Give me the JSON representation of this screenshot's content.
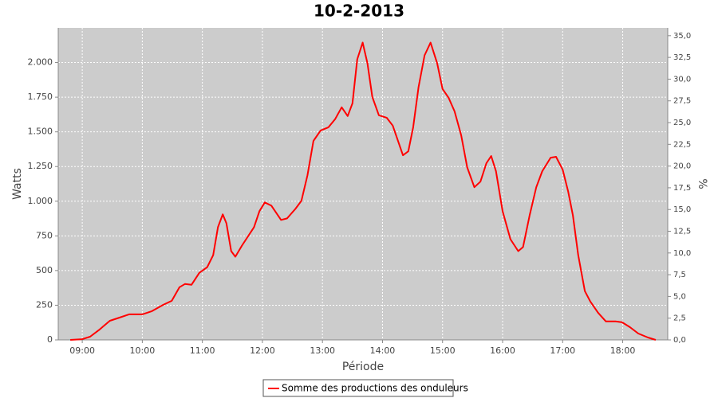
{
  "chart_data": {
    "type": "line",
    "title": "10-2-2013",
    "x_label": "Période",
    "y_label": "Watts",
    "y2_label": "%",
    "x": [
      8.8,
      9.0,
      9.13,
      9.29,
      9.46,
      9.62,
      9.78,
      10.0,
      10.16,
      10.35,
      10.49,
      10.62,
      10.71,
      10.82,
      10.95,
      11.08,
      11.18,
      11.26,
      11.34,
      11.4,
      11.48,
      11.55,
      11.66,
      11.86,
      11.95,
      12.04,
      12.15,
      12.31,
      12.41,
      12.55,
      12.65,
      12.75,
      12.85,
      12.97,
      13.1,
      13.21,
      13.32,
      13.42,
      13.5,
      13.58,
      13.67,
      13.75,
      13.83,
      13.94,
      14.07,
      14.17,
      14.34,
      14.43,
      14.51,
      14.6,
      14.7,
      14.8,
      14.91,
      15.0,
      15.1,
      15.2,
      15.31,
      15.41,
      15.53,
      15.63,
      15.73,
      15.81,
      15.89,
      16.0,
      16.13,
      16.26,
      16.34,
      16.45,
      16.56,
      16.66,
      16.8,
      16.89,
      17.0,
      17.09,
      17.17,
      17.26,
      17.37,
      17.46,
      17.59,
      17.72,
      17.88,
      17.99,
      18.12,
      18.26,
      18.42,
      18.55
    ],
    "series": [
      {
        "name": "Somme des productions des onduleurs",
        "color": "#ff0000",
        "values": [
          0,
          5,
          23,
          75,
          138,
          161,
          184,
          184,
          207,
          253,
          282,
          380,
          403,
          398,
          484,
          524,
          611,
          813,
          905,
          841,
          640,
          600,
          680,
          813,
          928,
          991,
          968,
          865,
          876,
          945,
          1003,
          1187,
          1435,
          1510,
          1533,
          1591,
          1677,
          1614,
          1706,
          2023,
          2144,
          1994,
          1752,
          1620,
          1602,
          1545,
          1331,
          1360,
          1533,
          1821,
          2052,
          2144,
          1994,
          1810,
          1746,
          1648,
          1475,
          1245,
          1101,
          1141,
          1274,
          1326,
          1216,
          928,
          726,
          640,
          669,
          899,
          1101,
          1216,
          1314,
          1320,
          1228,
          1072,
          899,
          611,
          352,
          277,
          196,
          133,
          133,
          127,
          92,
          46,
          17,
          0
        ]
      }
    ],
    "xlim": [
      8.6,
      18.75
    ],
    "xticks": [
      {
        "value": 9,
        "label": "09:00"
      },
      {
        "value": 10,
        "label": "10:00"
      },
      {
        "value": 11,
        "label": "11:00"
      },
      {
        "value": 12,
        "label": "12:00"
      },
      {
        "value": 13,
        "label": "13:00"
      },
      {
        "value": 14,
        "label": "14:00"
      },
      {
        "value": 15,
        "label": "15:00"
      },
      {
        "value": 16,
        "label": "16:00"
      },
      {
        "value": 17,
        "label": "17:00"
      },
      {
        "value": 18,
        "label": "18:00"
      }
    ],
    "ylim": [
      0,
      2250
    ],
    "yticks": [
      0,
      250,
      500,
      750,
      {
        "value": 1000,
        "label": "1.000"
      },
      {
        "value": 1250,
        "label": "1.250"
      },
      {
        "value": 1500,
        "label": "1.500"
      },
      {
        "value": 1750,
        "label": "1.750"
      },
      {
        "value": 2000,
        "label": "2.000"
      }
    ],
    "y2lim": [
      0,
      35.9
    ],
    "y2ticks": [
      {
        "value": 0,
        "label": "0,0"
      },
      {
        "value": 2.5,
        "label": "2,5"
      },
      {
        "value": 5,
        "label": "5,0"
      },
      {
        "value": 7.5,
        "label": "7,5"
      },
      {
        "value": 10,
        "label": "10,0"
      },
      {
        "value": 12.5,
        "label": "12,5"
      },
      {
        "value": 15,
        "label": "15,0"
      },
      {
        "value": 17.5,
        "label": "17,5"
      },
      {
        "value": 20,
        "label": "20,0"
      },
      {
        "value": 22.5,
        "label": "22,5"
      },
      {
        "value": 25,
        "label": "25,0"
      },
      {
        "value": 27.5,
        "label": "27,5"
      },
      {
        "value": 30,
        "label": "30,0"
      },
      {
        "value": 32.5,
        "label": "32,5"
      },
      {
        "value": 35,
        "label": "35,0"
      }
    ],
    "grid": true,
    "plot_background": "#cccccc",
    "legend": "bottom"
  }
}
